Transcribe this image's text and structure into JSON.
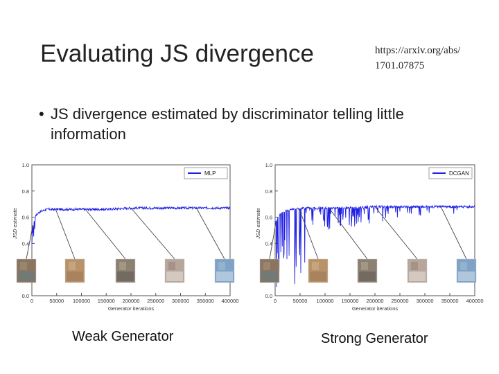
{
  "slide": {
    "title": "Evaluating JS divergence",
    "reference_line1": "https://arxiv.org/abs/",
    "reference_line2": "1701.07875",
    "bullet": "JS divergence estimated by discriminator telling little information",
    "caption_left": "Weak Generator",
    "caption_right": "Strong Generator"
  },
  "colors": {
    "series": "#1f1fe6",
    "frame": "#777777",
    "text": "#222222"
  },
  "chart_data": [
    {
      "type": "line",
      "title": "",
      "xlabel": "Generator iterations",
      "ylabel": "JSD estimate",
      "xlim": [
        0,
        400000
      ],
      "ylim": [
        0.0,
        1.0
      ],
      "x_ticks": [
        "0",
        "50000",
        "100000",
        "150000",
        "200000",
        "250000",
        "300000",
        "350000",
        "400000"
      ],
      "y_ticks": [
        "0.0",
        "0.2",
        "0.4",
        "0.6",
        "0.8",
        "1.0"
      ],
      "legend": "top-right",
      "series": [
        {
          "name": "MLP",
          "x": [
            0,
            5000,
            15000,
            30000,
            60000,
            100000,
            150000,
            200000,
            250000,
            300000,
            350000,
            400000
          ],
          "y": [
            0.5,
            0.6,
            0.64,
            0.66,
            0.66,
            0.66,
            0.66,
            0.67,
            0.67,
            0.67,
            0.67,
            0.67
          ]
        }
      ]
    },
    {
      "type": "line",
      "title": "",
      "xlabel": "Generator iterations",
      "ylabel": "JSD estimate",
      "xlim": [
        0,
        400000
      ],
      "ylim": [
        0.0,
        1.0
      ],
      "x_ticks": [
        "0",
        "50000",
        "100000",
        "150000",
        "200000",
        "250000",
        "300000",
        "350000",
        "400000"
      ],
      "y_ticks": [
        "0.0",
        "0.2",
        "0.4",
        "0.6",
        "0.8",
        "1.0"
      ],
      "legend": "top-right",
      "series": [
        {
          "name": "DCGAN",
          "x": [
            0,
            5000,
            15000,
            30000,
            60000,
            100000,
            150000,
            200000,
            250000,
            300000,
            350000,
            400000
          ],
          "y": [
            0.55,
            0.6,
            0.64,
            0.66,
            0.67,
            0.67,
            0.67,
            0.68,
            0.68,
            0.68,
            0.68,
            0.68
          ]
        }
      ]
    }
  ]
}
